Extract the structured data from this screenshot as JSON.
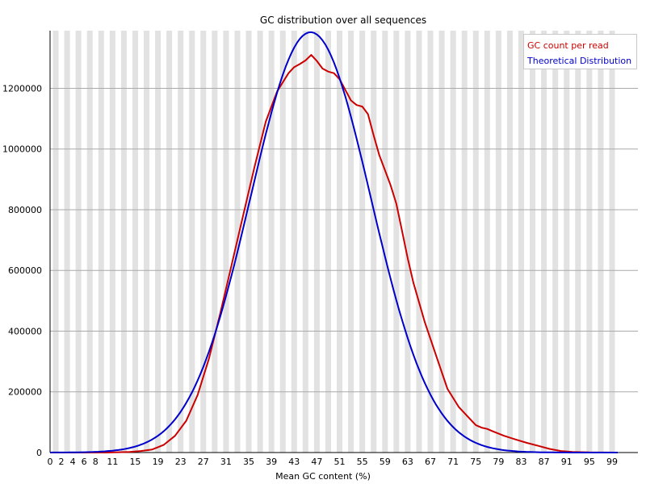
{
  "chart_data": {
    "type": "line",
    "title": "GC distribution over all sequences",
    "xlabel": "Mean GC content (%)",
    "ylabel": "",
    "xlim": [
      0,
      100
    ],
    "ylim": [
      0,
      1390000
    ],
    "yticks": [
      0,
      200000,
      400000,
      600000,
      800000,
      1000000,
      1200000
    ],
    "ytick_labels": [
      "0",
      "200000",
      "400000",
      "600000",
      "800000",
      "1000000",
      "1200000"
    ],
    "xtick_labels": [
      "0",
      "2",
      "4",
      "6",
      "8",
      "11",
      "15",
      "19",
      "23",
      "27",
      "31",
      "35",
      "39",
      "43",
      "47",
      "51",
      "55",
      "59",
      "63",
      "67",
      "71",
      "75",
      "79",
      "83",
      "87",
      "91",
      "95",
      "99"
    ],
    "grid": "horizontal lines with alternating vertical bands",
    "legend_position": "top-right",
    "series": [
      {
        "name": "GC count per read",
        "color": "#cc0000",
        "x": [
          0,
          2,
          4,
          6,
          8,
          10,
          12,
          14,
          16,
          18,
          20,
          22,
          24,
          26,
          28,
          30,
          32,
          34,
          36,
          38,
          40,
          42,
          43,
          44,
          45,
          46,
          47,
          48,
          49,
          50,
          51,
          52,
          53,
          54,
          55,
          56,
          57,
          58,
          59,
          60,
          61,
          62,
          63,
          64,
          66,
          68,
          70,
          72,
          74,
          75,
          76,
          77,
          78,
          80,
          82,
          84,
          86,
          88,
          90,
          92,
          95,
          100
        ],
        "values": [
          0,
          0,
          0,
          0,
          0,
          0,
          1000,
          2000,
          5000,
          10000,
          25000,
          55000,
          105000,
          190000,
          310000,
          460000,
          620000,
          780000,
          940000,
          1090000,
          1190000,
          1250000,
          1270000,
          1280000,
          1292000,
          1310000,
          1290000,
          1265000,
          1255000,
          1250000,
          1230000,
          1195000,
          1160000,
          1145000,
          1140000,
          1115000,
          1045000,
          980000,
          930000,
          880000,
          820000,
          730000,
          640000,
          560000,
          430000,
          320000,
          210000,
          150000,
          110000,
          90000,
          82000,
          78000,
          70000,
          55000,
          43000,
          32000,
          22000,
          12000,
          5000,
          2000,
          500,
          0
        ]
      },
      {
        "name": "Theoretical Distribution",
        "color": "#0000cc",
        "distribution": {
          "mean": 45.9,
          "sd": 10.6,
          "peak": 1385000
        },
        "x_range": [
          0,
          100
        ]
      }
    ]
  }
}
